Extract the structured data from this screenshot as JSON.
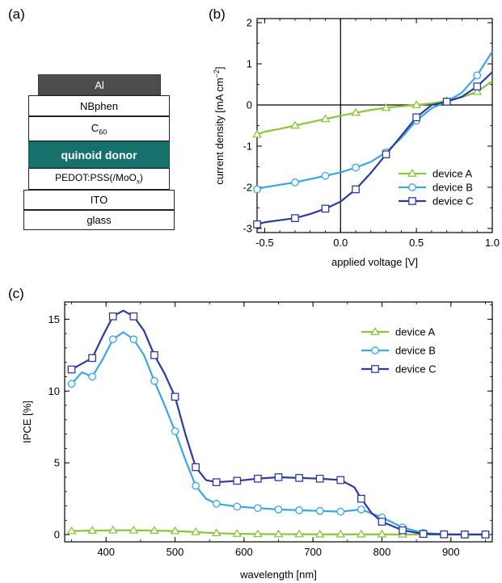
{
  "panels": {
    "a": "(a)",
    "b": "(b)",
    "c": "(c)"
  },
  "stack": {
    "al": "Al",
    "nbphen": "NBphen",
    "c60_main": "C",
    "c60_sub": "60",
    "donor": "quinoid donor",
    "pedot_main": "PEDOT:PSS(/MoO",
    "pedot_sub": "x",
    "pedot_close": ")",
    "ito": "ITO",
    "glass": "glass"
  },
  "colors": {
    "device_a": "#8cc43c",
    "device_b": "#3aa6e2",
    "device_c": "#2e3a9e",
    "al_fill": "#4d4d4d",
    "donor_fill": "#16706c"
  },
  "chart_data": [
    {
      "type": "line",
      "title": "",
      "xlabel": "applied voltage [V]",
      "ylabel_main": "current density [mA cm",
      "ylabel_sup": "−2",
      "ylabel_close": "]",
      "xlim": [
        -0.55,
        1.0
      ],
      "ylim": [
        -3.1,
        2.1
      ],
      "xticks": [
        "-0.5",
        "0.0",
        "0.5",
        "1.0"
      ],
      "yticks": [
        "-3",
        "-2",
        "-1",
        "0",
        "1",
        "2"
      ],
      "legend_position": "bottom-right",
      "series": [
        {
          "name": "device A",
          "marker": "triangle",
          "x": [
            -0.55,
            -0.5,
            -0.4,
            -0.3,
            -0.2,
            -0.1,
            0.0,
            0.1,
            0.2,
            0.3,
            0.4,
            0.5,
            0.6,
            0.7,
            0.8,
            0.9,
            1.0
          ],
          "y": [
            -0.72,
            -0.65,
            -0.58,
            -0.5,
            -0.42,
            -0.34,
            -0.26,
            -0.19,
            -0.12,
            -0.07,
            -0.03,
            0.0,
            0.04,
            0.1,
            0.19,
            0.32,
            0.58
          ],
          "marker_x": [
            -0.55,
            -0.3,
            -0.1,
            0.1,
            0.3,
            0.5,
            0.7,
            0.9
          ]
        },
        {
          "name": "device B",
          "marker": "circle",
          "x": [
            -0.55,
            -0.5,
            -0.4,
            -0.3,
            -0.2,
            -0.1,
            0.0,
            0.1,
            0.2,
            0.3,
            0.4,
            0.5,
            0.6,
            0.7,
            0.8,
            0.9,
            1.0
          ],
          "y": [
            -2.05,
            -2.0,
            -1.94,
            -1.88,
            -1.8,
            -1.72,
            -1.64,
            -1.52,
            -1.38,
            -1.15,
            -0.8,
            -0.38,
            -0.08,
            0.08,
            0.3,
            0.72,
            1.3
          ],
          "marker_x": [
            -0.55,
            -0.3,
            -0.1,
            0.1,
            0.3,
            0.5,
            0.7,
            0.9
          ]
        },
        {
          "name": "device C",
          "marker": "square",
          "x": [
            -0.55,
            -0.5,
            -0.4,
            -0.3,
            -0.2,
            -0.1,
            0.0,
            0.1,
            0.2,
            0.3,
            0.4,
            0.5,
            0.6,
            0.7,
            0.8,
            0.9,
            1.0
          ],
          "y": [
            -2.9,
            -2.85,
            -2.8,
            -2.75,
            -2.65,
            -2.52,
            -2.35,
            -2.05,
            -1.65,
            -1.2,
            -0.75,
            -0.3,
            0.0,
            0.08,
            0.2,
            0.45,
            0.8
          ],
          "marker_x": [
            -0.55,
            -0.3,
            -0.1,
            0.1,
            0.3,
            0.5,
            0.7,
            0.9
          ]
        }
      ]
    },
    {
      "type": "line",
      "title": "",
      "xlabel": "wavelength [nm]",
      "ylabel": "IPCE [%]",
      "xlim": [
        340,
        960
      ],
      "ylim": [
        -0.5,
        16.2
      ],
      "xticks": [
        "400",
        "500",
        "600",
        "700",
        "800",
        "900"
      ],
      "yticks": [
        "0",
        "5",
        "10",
        "15"
      ],
      "legend_position": "top-right",
      "series": [
        {
          "name": "device A",
          "marker": "triangle",
          "x": [
            350,
            380,
            410,
            440,
            470,
            500,
            530,
            560,
            590,
            620,
            650,
            680,
            710,
            740,
            770,
            800,
            830,
            860,
            890,
            920,
            950
          ],
          "y": [
            0.25,
            0.28,
            0.3,
            0.3,
            0.28,
            0.25,
            0.18,
            0.1,
            0.06,
            0.04,
            0.03,
            0.03,
            0.02,
            0.02,
            0.02,
            0.02,
            0.01,
            0.01,
            0.0,
            0.0,
            0.0
          ]
        },
        {
          "name": "device B",
          "marker": "circle",
          "x": [
            350,
            365,
            380,
            395,
            410,
            425,
            440,
            455,
            470,
            485,
            500,
            515,
            530,
            545,
            560,
            590,
            620,
            650,
            680,
            710,
            740,
            770,
            800,
            830,
            860,
            890,
            920,
            950
          ],
          "y": [
            10.5,
            11.3,
            11.0,
            12.2,
            13.6,
            14.1,
            13.6,
            12.5,
            10.7,
            9.0,
            7.2,
            5.2,
            3.4,
            2.5,
            2.15,
            1.95,
            1.85,
            1.75,
            1.7,
            1.65,
            1.6,
            1.75,
            1.2,
            0.5,
            0.12,
            0.03,
            0.02,
            0.02
          ],
          "marker_x": [
            350,
            380,
            410,
            440,
            470,
            500,
            530,
            560,
            590,
            620,
            650,
            680,
            710,
            740,
            770,
            800,
            830,
            860,
            890,
            920,
            950
          ]
        },
        {
          "name": "device C",
          "marker": "square",
          "x": [
            350,
            365,
            380,
            395,
            410,
            425,
            440,
            455,
            470,
            485,
            500,
            515,
            530,
            545,
            560,
            590,
            620,
            650,
            680,
            710,
            740,
            760,
            770,
            785,
            800,
            830,
            860,
            890,
            920,
            950
          ],
          "y": [
            11.5,
            11.9,
            12.3,
            13.8,
            15.2,
            15.6,
            15.2,
            14.2,
            12.5,
            11.2,
            9.6,
            7.0,
            4.7,
            3.8,
            3.65,
            3.75,
            3.9,
            4.0,
            3.95,
            3.9,
            3.8,
            3.3,
            2.5,
            1.5,
            0.9,
            0.3,
            0.05,
            0.02,
            0.01,
            0.01
          ],
          "marker_x": [
            350,
            380,
            410,
            440,
            470,
            500,
            530,
            560,
            590,
            620,
            650,
            680,
            710,
            740,
            770,
            800,
            830,
            860,
            890,
            920,
            950
          ]
        }
      ]
    }
  ]
}
